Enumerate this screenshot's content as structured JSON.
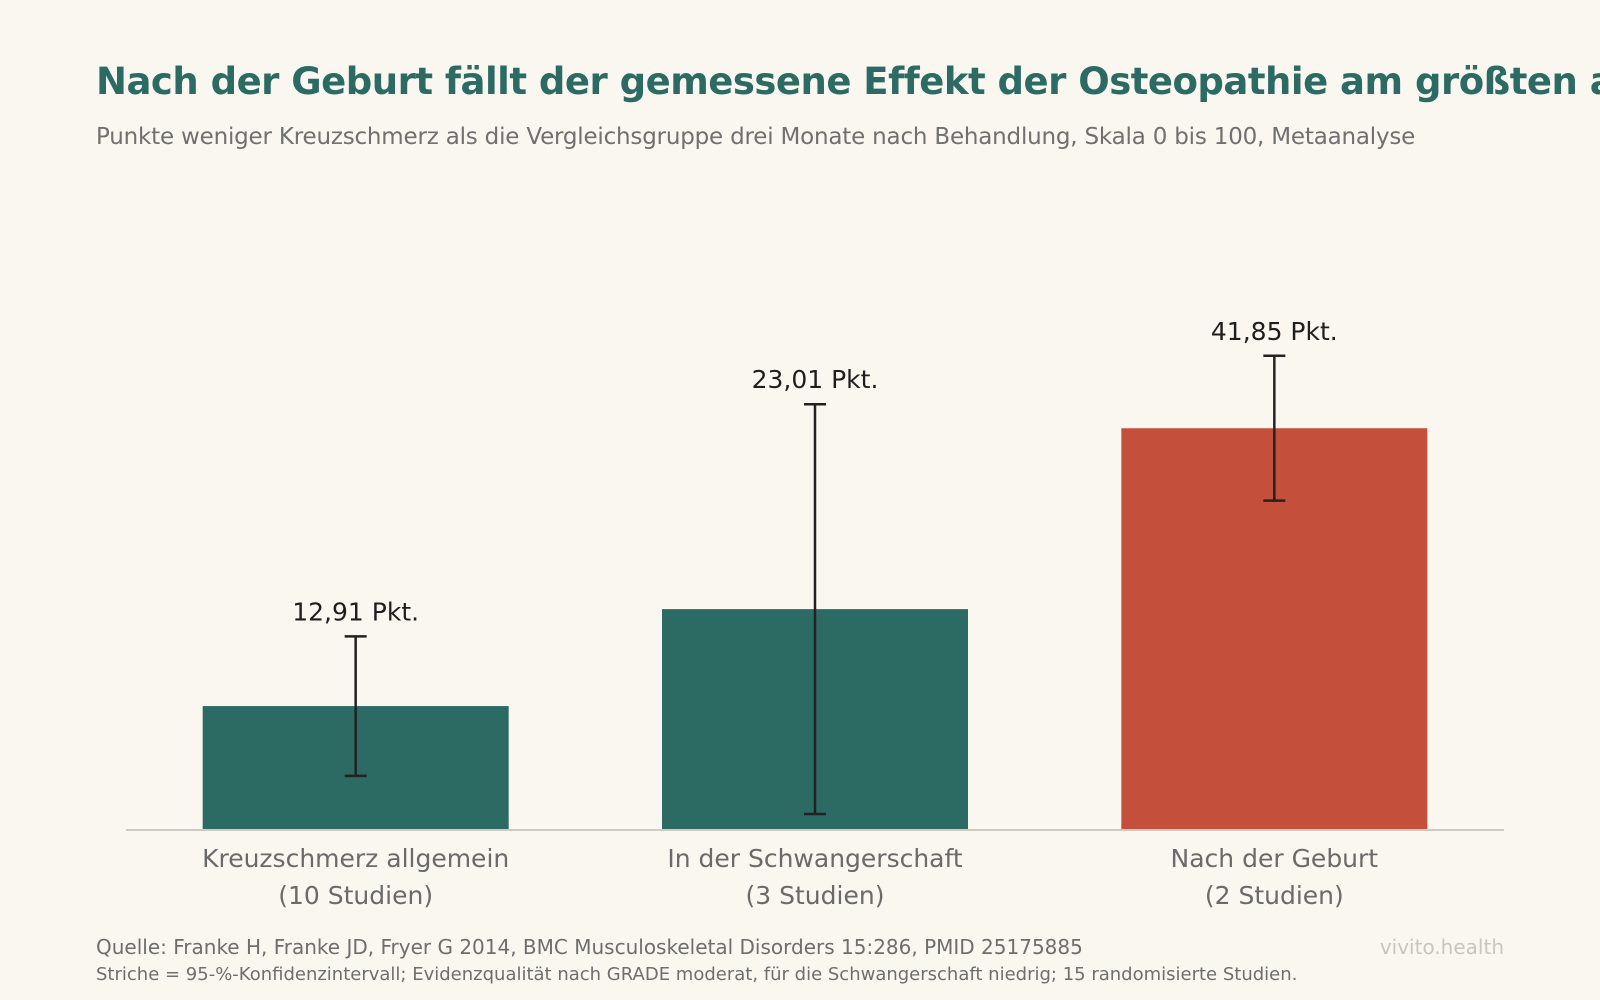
{
  "title": "Nach der Geburt fällt der gemessene Effekt der Osteopathie am größten aus",
  "subtitle": "Punkte weniger Kreuzschmerz als die Vergleichsgruppe drei Monate nach Behandlung, Skala 0 bis 100, Metaanalyse",
  "footer": {
    "source": "Quelle: Franke H, Franke JD, Fryer G 2014, BMC Musculoskeletal Disorders 15:286, PMID 25175885",
    "note": "Striche = 95-%-Konfidenzintervall; Evidenzqualität nach GRADE moderat, für die Schwangerschaft niedrig; 15 randomisierte Studien.",
    "brand": "vivito.health"
  },
  "chart_data": {
    "type": "bar",
    "categories": [
      [
        "Kreuzschmerz allgemein",
        "(10 Studien)"
      ],
      [
        "In der Schwangerschaft",
        "(3 Studien)"
      ],
      [
        "Nach der Geburt",
        "(2 Studien)"
      ]
    ],
    "values": [
      12.91,
      23.01,
      41.85
    ],
    "value_labels": [
      "12,91 Pkt.",
      "23,01 Pkt.",
      "41,85 Pkt."
    ],
    "ci_low": [
      5.64,
      1.67,
      34.31
    ],
    "ci_high": [
      20.17,
      44.35,
      49.4
    ],
    "colors": [
      "#2c6a64",
      "#2c6a64",
      "#c44f3a"
    ],
    "ylim": [
      0,
      55
    ],
    "grid": false,
    "xlabel": "",
    "ylabel": ""
  }
}
